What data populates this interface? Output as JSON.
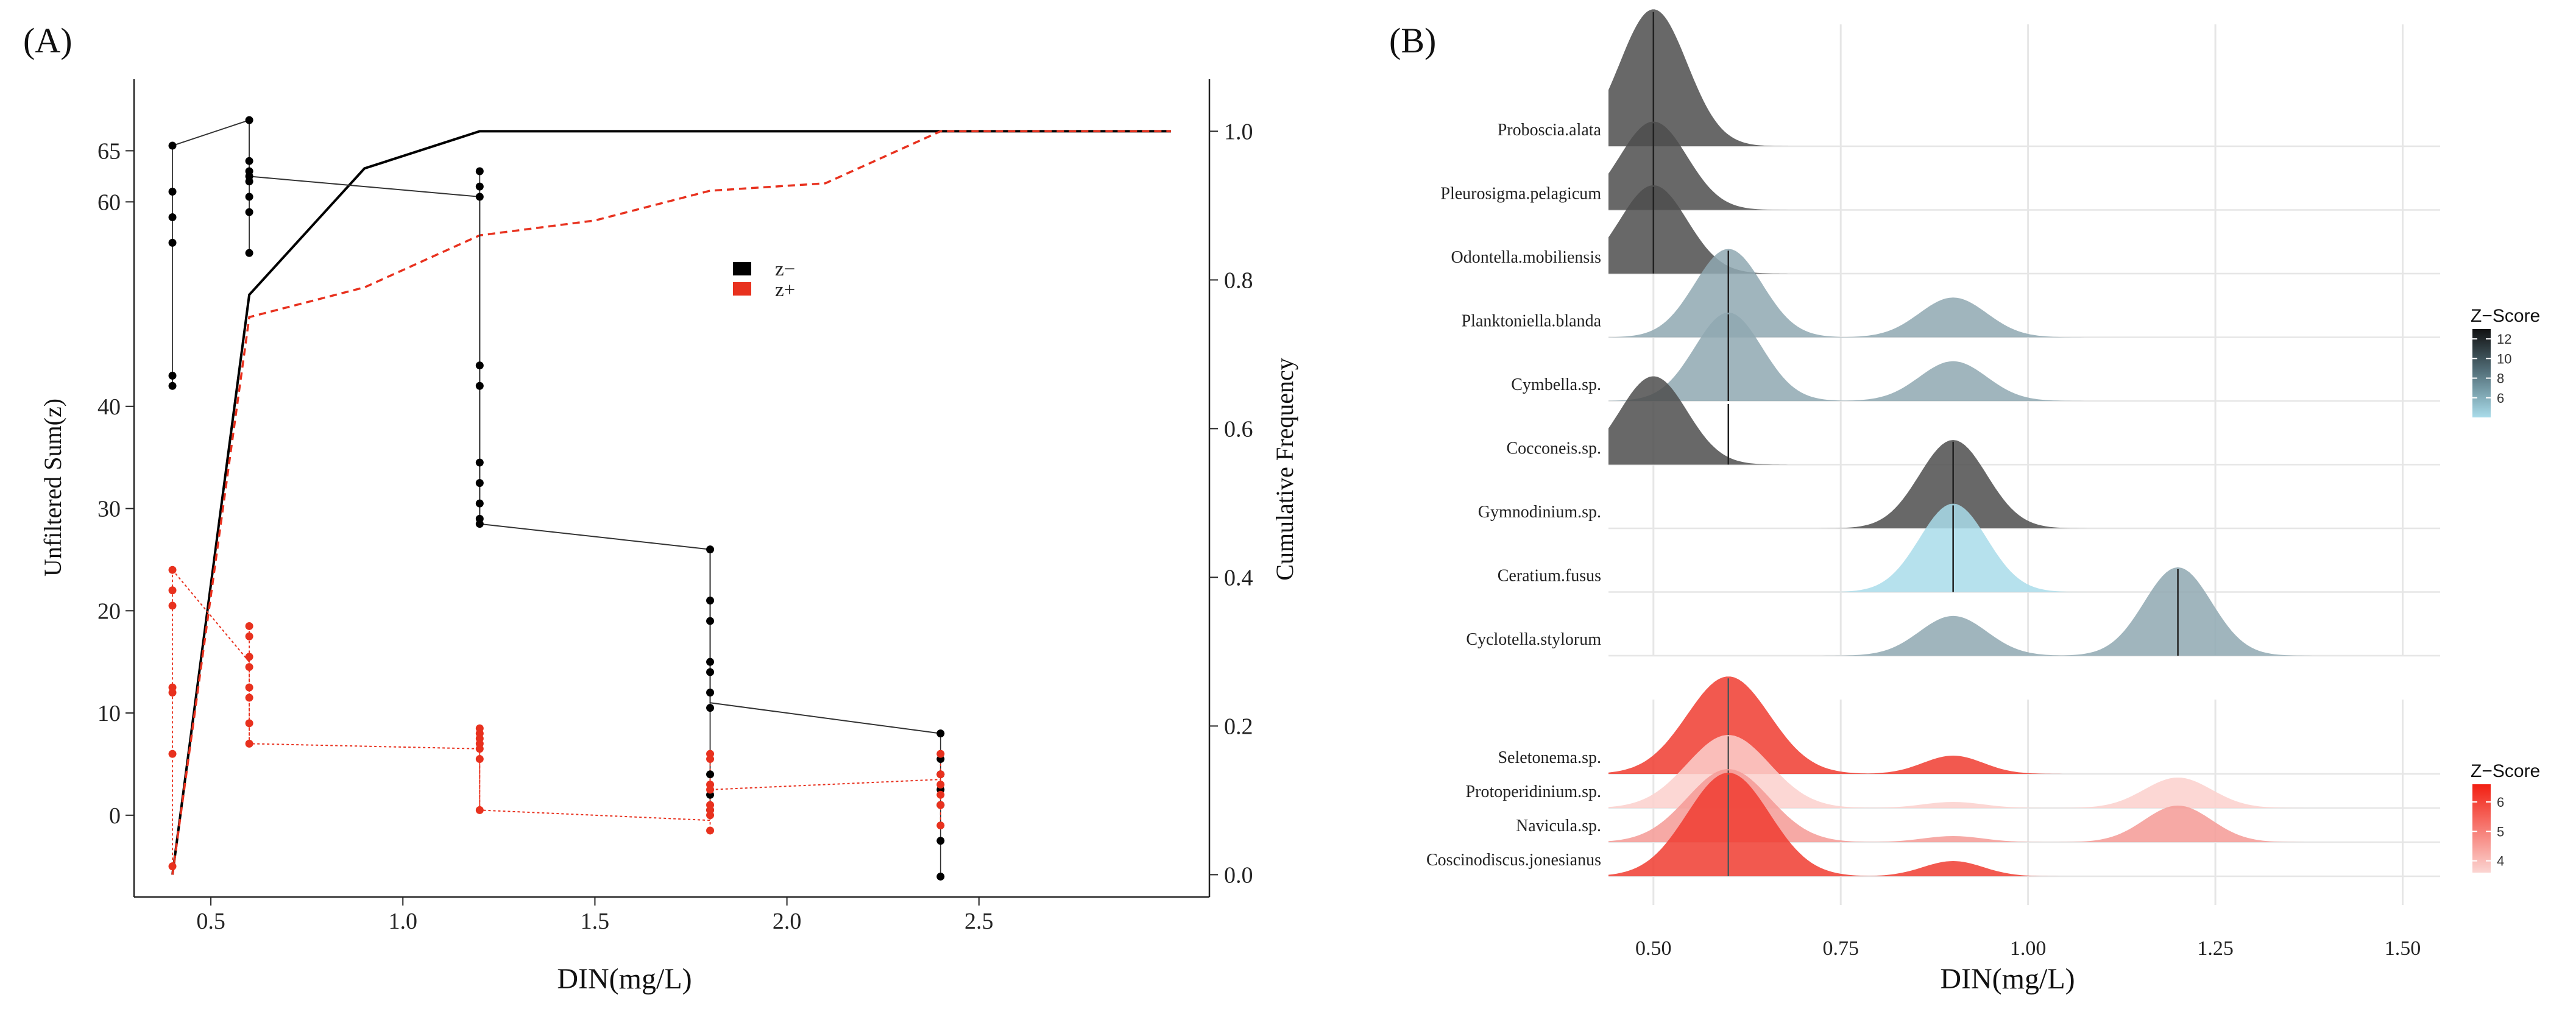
{
  "colors": {
    "black_series": "#000000",
    "red_series": "#e8311e",
    "ridge_dark": "#4d4d4d",
    "ridge_mid": "#8fa8b2",
    "ridge_light": "#a9dcea",
    "ridge_red_strong": "#f03c30",
    "ridge_red_mid": "#f59a95",
    "ridge_red_light": "#fbd0cd",
    "grid": "#e6e6e6"
  },
  "chart_data": [
    {
      "panel": "(A)",
      "type": "scatter",
      "xlabel": "DIN(mg/L)",
      "ylabel": "Unfiltered Sum(z)",
      "y2label": "Cumulative Frequency",
      "xlim": [
        0.3,
        3.1
      ],
      "ylim": [
        -8,
        72
      ],
      "y2lim": [
        -0.03,
        1.07
      ],
      "x_ticks": [
        "0.5",
        "1.0",
        "1.5",
        "2.0",
        "2.5"
      ],
      "x_tick_values": [
        0.5,
        1.0,
        1.5,
        2.0,
        2.5
      ],
      "y_ticks": [
        "0",
        "10",
        "20",
        "30",
        "40",
        "60",
        "65"
      ],
      "y_tick_values": [
        0,
        10,
        20,
        30,
        40,
        60,
        65
      ],
      "y2_ticks": [
        "0.0",
        "0.2",
        "0.4",
        "0.6",
        "0.8",
        "1.0"
      ],
      "y2_tick_values": [
        0.0,
        0.2,
        0.4,
        0.6,
        0.8,
        1.0
      ],
      "legend": [
        "z−",
        "z+"
      ],
      "legend_position": "center",
      "series": [
        {
          "name": "z−",
          "points": [
            {
              "x": 0.4,
              "ys": [
                65.5,
                61,
                58.5,
                56,
                43,
                42
              ]
            },
            {
              "x": 0.6,
              "ys": [
                68,
                64,
                63,
                62.5,
                62,
                60.5,
                59,
                55
              ]
            },
            {
              "x": 1.2,
              "ys": [
                63,
                61.5,
                60.5,
                44,
                42,
                34.5,
                32.5,
                30.5,
                29,
                28.5
              ]
            },
            {
              "x": 1.8,
              "ys": [
                26,
                21,
                19,
                15,
                14,
                12,
                10.5,
                4,
                2,
                0.5
              ]
            },
            {
              "x": 2.4,
              "ys": [
                8,
                5.5,
                4,
                2.5,
                1,
                -2.5,
                -6
              ]
            }
          ],
          "connector": [
            {
              "x": 0.4,
              "y": 65.5
            },
            {
              "x": 0.6,
              "y": 68
            },
            {
              "x": 0.6,
              "y": 62.5
            },
            {
              "x": 1.2,
              "y": 60.5
            },
            {
              "x": 1.2,
              "y": 28.5
            },
            {
              "x": 1.8,
              "y": 26
            },
            {
              "x": 1.8,
              "y": 11
            },
            {
              "x": 2.4,
              "y": 8
            }
          ]
        },
        {
          "name": "z+",
          "points": [
            {
              "x": 0.4,
              "ys": [
                24,
                22,
                20.5,
                12.5,
                12,
                6,
                -5
              ]
            },
            {
              "x": 0.6,
              "ys": [
                18.5,
                17.5,
                15.5,
                14.5,
                12.5,
                11.5,
                9,
                7
              ]
            },
            {
              "x": 1.2,
              "ys": [
                8.5,
                8,
                7.5,
                7,
                6.5,
                5.5,
                0.5
              ]
            },
            {
              "x": 1.8,
              "ys": [
                6,
                5.5,
                3,
                2.5,
                1,
                0.5,
                0,
                -1.5
              ]
            },
            {
              "x": 2.4,
              "ys": [
                6,
                4,
                3,
                2,
                1,
                -1
              ]
            }
          ],
          "connector": [
            {
              "x": 0.4,
              "y": 24
            },
            {
              "x": 0.6,
              "y": 15
            },
            {
              "x": 0.6,
              "y": 7
            },
            {
              "x": 1.2,
              "y": 6.5
            },
            {
              "x": 1.2,
              "y": 0.5
            },
            {
              "x": 1.8,
              "y": -0.5
            },
            {
              "x": 1.8,
              "y": 2.5
            },
            {
              "x": 2.4,
              "y": 3.5
            }
          ]
        }
      ],
      "cumulative": [
        {
          "name": "z−",
          "style": "solid",
          "x": [
            0.4,
            0.6,
            0.9,
            1.2,
            1.5,
            2.4,
            3.0
          ],
          "y": [
            0.0,
            0.78,
            0.95,
            1.0,
            1.0,
            1.0,
            1.0
          ]
        },
        {
          "name": "z+",
          "style": "dashed",
          "x": [
            0.4,
            0.6,
            0.9,
            1.2,
            1.5,
            1.8,
            2.1,
            2.4,
            3.0
          ],
          "y": [
            0.0,
            0.75,
            0.79,
            0.86,
            0.88,
            0.92,
            0.93,
            1.0,
            1.0
          ]
        }
      ]
    },
    {
      "panel": "(B)",
      "type": "ridgeline",
      "xlabel": "DIN(mg/L)",
      "xlim": [
        0.44,
        1.55
      ],
      "x_ticks": [
        "0.50",
        "0.75",
        "1.00",
        "1.25",
        "1.50"
      ],
      "x_tick_values": [
        0.5,
        0.75,
        1.0,
        1.25,
        1.5
      ],
      "legend_titles": [
        "Z−Score",
        "Z−Score"
      ],
      "legend_top_ticks": [
        "12",
        "10",
        "8",
        "6"
      ],
      "legend_top_values": [
        12,
        10,
        8,
        6
      ],
      "legend_top_range": [
        4,
        13
      ],
      "legend_bottom_ticks": [
        "6",
        "5",
        "4"
      ],
      "legend_bottom_values": [
        6,
        5,
        4
      ],
      "legend_bottom_range": [
        3.6,
        6.6
      ],
      "groups": [
        {
          "name": "z−",
          "species": [
            {
              "label": "Proboscia.alata",
              "peaks": [
                {
                  "x": 0.5,
                  "h": 1.55,
                  "sd": 0.045,
                  "c": "dark"
                }
              ],
              "median": 0.5
            },
            {
              "label": "Pleurosigma.pelagicum",
              "peaks": [
                {
                  "x": 0.5,
                  "h": 1.0,
                  "sd": 0.045,
                  "c": "dark"
                }
              ],
              "median": 0.5
            },
            {
              "label": "Odontella.mobiliensis",
              "peaks": [
                {
                  "x": 0.5,
                  "h": 1.0,
                  "sd": 0.045,
                  "c": "dark"
                }
              ],
              "median": 0.5
            },
            {
              "label": "Planktoniella.blanda",
              "peaks": [
                {
                  "x": 0.6,
                  "h": 1.0,
                  "sd": 0.045,
                  "c": "mid"
                },
                {
                  "x": 0.9,
                  "h": 0.45,
                  "sd": 0.045,
                  "c": "mid"
                }
              ],
              "median": 0.6
            },
            {
              "label": "Cymbella.sp.",
              "peaks": [
                {
                  "x": 0.6,
                  "h": 1.0,
                  "sd": 0.045,
                  "c": "mid"
                },
                {
                  "x": 0.9,
                  "h": 0.45,
                  "sd": 0.045,
                  "c": "mid"
                }
              ],
              "median": 0.6
            },
            {
              "label": "Cocconeis.sp.",
              "peaks": [
                {
                  "x": 0.5,
                  "h": 1.0,
                  "sd": 0.045,
                  "c": "dark"
                }
              ],
              "median": 0.6
            },
            {
              "label": "Gymnodinium.sp.",
              "peaks": [
                {
                  "x": 0.9,
                  "h": 1.0,
                  "sd": 0.045,
                  "c": "dark"
                }
              ],
              "median": 0.9
            },
            {
              "label": "Ceratium.fusus",
              "peaks": [
                {
                  "x": 0.9,
                  "h": 1.0,
                  "sd": 0.045,
                  "c": "light"
                }
              ],
              "median": 0.9
            },
            {
              "label": "Cyclotella.stylorum",
              "peaks": [
                {
                  "x": 0.9,
                  "h": 0.45,
                  "sd": 0.045,
                  "c": "mid"
                },
                {
                  "x": 1.2,
                  "h": 1.0,
                  "sd": 0.045,
                  "c": "mid"
                }
              ],
              "median": 1.2
            }
          ]
        },
        {
          "name": "z+",
          "species": [
            {
              "label": "Seletonema.sp.",
              "peaks": [
                {
                  "x": 0.6,
                  "h": 1.6,
                  "sd": 0.055,
                  "c": "red_strong"
                },
                {
                  "x": 0.9,
                  "h": 0.3,
                  "sd": 0.04,
                  "c": "red_strong"
                }
              ],
              "median": 0.6
            },
            {
              "label": "Protoperidinium.sp.",
              "peaks": [
                {
                  "x": 0.6,
                  "h": 1.2,
                  "sd": 0.055,
                  "c": "red_light"
                },
                {
                  "x": 0.9,
                  "h": 0.1,
                  "sd": 0.04,
                  "c": "red_light"
                },
                {
                  "x": 1.2,
                  "h": 0.5,
                  "sd": 0.045,
                  "c": "red_light"
                }
              ],
              "median": 0.6
            },
            {
              "label": "Navicula.sp.",
              "peaks": [
                {
                  "x": 0.6,
                  "h": 1.2,
                  "sd": 0.055,
                  "c": "red_mid"
                },
                {
                  "x": 0.9,
                  "h": 0.1,
                  "sd": 0.04,
                  "c": "red_mid"
                },
                {
                  "x": 1.2,
                  "h": 0.6,
                  "sd": 0.045,
                  "c": "red_mid"
                }
              ],
              "median": 0.6
            },
            {
              "label": "Coscinodiscus.jonesianus",
              "peaks": [
                {
                  "x": 0.6,
                  "h": 1.7,
                  "sd": 0.055,
                  "c": "red_strong"
                },
                {
                  "x": 0.9,
                  "h": 0.25,
                  "sd": 0.04,
                  "c": "red_strong"
                }
              ],
              "median": 0.6
            }
          ]
        }
      ]
    }
  ]
}
